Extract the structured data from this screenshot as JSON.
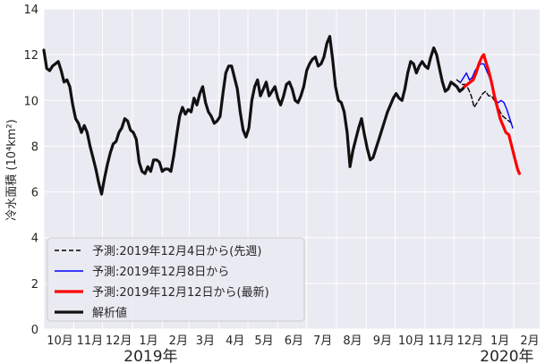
{
  "chart_data": {
    "type": "line",
    "ylabel": "冷水面積 (10⁴km²)",
    "ylim": [
      0,
      14
    ],
    "yticks": [
      0,
      2,
      4,
      6,
      8,
      10,
      12,
      14
    ],
    "xlim": [
      "2018-10-01",
      "2020-02-28"
    ],
    "xticks": [
      {
        "date": "2018-10-01",
        "label": "10月"
      },
      {
        "date": "2018-11-01",
        "label": "11月"
      },
      {
        "date": "2018-12-01",
        "label": "12月"
      },
      {
        "date": "2019-01-01",
        "label": "1月"
      },
      {
        "date": "2019-02-01",
        "label": "2月"
      },
      {
        "date": "2019-03-01",
        "label": "3月"
      },
      {
        "date": "2019-04-01",
        "label": "4月"
      },
      {
        "date": "2019-05-01",
        "label": "5月"
      },
      {
        "date": "2019-06-01",
        "label": "6月"
      },
      {
        "date": "2019-07-01",
        "label": "7月"
      },
      {
        "date": "2019-08-01",
        "label": "8月"
      },
      {
        "date": "2019-09-01",
        "label": "9月"
      },
      {
        "date": "2019-10-01",
        "label": "10月"
      },
      {
        "date": "2019-11-01",
        "label": "11月"
      },
      {
        "date": "2019-12-01",
        "label": "12月"
      },
      {
        "date": "2020-01-01",
        "label": "1月"
      },
      {
        "date": "2020-02-01",
        "label": "2月"
      }
    ],
    "year_labels": [
      {
        "date": "2019-01-20",
        "label": "2019年"
      },
      {
        "date": "2020-01-25",
        "label": "2020年"
      }
    ],
    "grid": true,
    "legend_position": "bottom-left",
    "series": [
      {
        "name": "予測:2019年12月4日から(先週)",
        "color": "#000000",
        "style": "dashed",
        "width": 1.4,
        "points": [
          [
            "2019-12-04",
            10.9
          ],
          [
            "2019-12-07",
            10.8
          ],
          [
            "2019-12-10",
            10.7
          ],
          [
            "2019-12-13",
            10.7
          ],
          [
            "2019-12-16",
            10.5
          ],
          [
            "2019-12-19",
            10.2
          ],
          [
            "2019-12-22",
            9.7
          ],
          [
            "2019-12-25",
            9.9
          ],
          [
            "2019-12-28",
            10.1
          ],
          [
            "2019-12-31",
            10.3
          ],
          [
            "2020-01-03",
            10.4
          ],
          [
            "2020-01-06",
            10.2
          ],
          [
            "2020-01-09",
            10.2
          ],
          [
            "2020-01-12",
            10.0
          ],
          [
            "2020-01-15",
            9.8
          ],
          [
            "2020-01-18",
            9.5
          ],
          [
            "2020-01-21",
            9.3
          ],
          [
            "2020-01-24",
            9.2
          ],
          [
            "2020-01-27",
            9.1
          ],
          [
            "2020-01-30",
            9.0
          ]
        ]
      },
      {
        "name": "予測:2019年12月8日から",
        "color": "#0000ff",
        "style": "solid",
        "width": 1.4,
        "points": [
          [
            "2019-12-08",
            10.8
          ],
          [
            "2019-12-11",
            11.0
          ],
          [
            "2019-12-14",
            11.2
          ],
          [
            "2019-12-17",
            10.9
          ],
          [
            "2019-12-20",
            11.0
          ],
          [
            "2019-12-23",
            11.3
          ],
          [
            "2019-12-26",
            11.5
          ],
          [
            "2019-12-29",
            11.6
          ],
          [
            "2020-01-01",
            11.6
          ],
          [
            "2020-01-04",
            11.3
          ],
          [
            "2020-01-07",
            11.0
          ],
          [
            "2020-01-10",
            10.5
          ],
          [
            "2020-01-13",
            10.0
          ],
          [
            "2020-01-16",
            9.9
          ],
          [
            "2020-01-19",
            10.0
          ],
          [
            "2020-01-22",
            9.9
          ],
          [
            "2020-01-25",
            9.6
          ],
          [
            "2020-01-28",
            9.2
          ],
          [
            "2020-01-31",
            8.8
          ]
        ]
      },
      {
        "name": "予測:2019年12月12日から(最新)",
        "color": "#ff0000",
        "style": "solid",
        "width": 3.2,
        "points": [
          [
            "2019-12-12",
            10.6
          ],
          [
            "2019-12-15",
            10.7
          ],
          [
            "2019-12-18",
            10.8
          ],
          [
            "2019-12-21",
            10.9
          ],
          [
            "2019-12-24",
            11.2
          ],
          [
            "2019-12-27",
            11.6
          ],
          [
            "2019-12-30",
            11.9
          ],
          [
            "2020-01-01",
            12.0
          ],
          [
            "2020-01-03",
            11.7
          ],
          [
            "2020-01-06",
            11.3
          ],
          [
            "2020-01-09",
            10.8
          ],
          [
            "2020-01-12",
            10.2
          ],
          [
            "2020-01-15",
            9.7
          ],
          [
            "2020-01-18",
            9.2
          ],
          [
            "2020-01-21",
            8.9
          ],
          [
            "2020-01-24",
            8.6
          ],
          [
            "2020-01-27",
            8.5
          ],
          [
            "2020-01-30",
            8.0
          ],
          [
            "2020-02-02",
            7.5
          ],
          [
            "2020-02-05",
            7.0
          ],
          [
            "2020-02-07",
            6.8
          ]
        ]
      },
      {
        "name": "解析値",
        "color": "#111111",
        "style": "solid",
        "width": 3.2,
        "points": [
          [
            "2018-10-01",
            12.2
          ],
          [
            "2018-10-04",
            11.4
          ],
          [
            "2018-10-07",
            11.3
          ],
          [
            "2018-10-10",
            11.5
          ],
          [
            "2018-10-13",
            11.6
          ],
          [
            "2018-10-16",
            11.7
          ],
          [
            "2018-10-19",
            11.3
          ],
          [
            "2018-10-22",
            10.8
          ],
          [
            "2018-10-25",
            10.9
          ],
          [
            "2018-10-28",
            10.6
          ],
          [
            "2018-10-31",
            9.8
          ],
          [
            "2018-11-03",
            9.2
          ],
          [
            "2018-11-06",
            9.0
          ],
          [
            "2018-11-09",
            8.6
          ],
          [
            "2018-11-12",
            8.9
          ],
          [
            "2018-11-15",
            8.6
          ],
          [
            "2018-11-18",
            8.0
          ],
          [
            "2018-11-21",
            7.5
          ],
          [
            "2018-11-24",
            7.0
          ],
          [
            "2018-11-27",
            6.4
          ],
          [
            "2018-11-30",
            5.9
          ],
          [
            "2018-12-03",
            6.6
          ],
          [
            "2018-12-06",
            7.2
          ],
          [
            "2018-12-09",
            7.7
          ],
          [
            "2018-12-12",
            8.1
          ],
          [
            "2018-12-15",
            8.2
          ],
          [
            "2018-12-18",
            8.6
          ],
          [
            "2018-12-21",
            8.8
          ],
          [
            "2018-12-24",
            9.2
          ],
          [
            "2018-12-27",
            9.1
          ],
          [
            "2018-12-30",
            8.7
          ],
          [
            "2019-01-02",
            8.6
          ],
          [
            "2019-01-05",
            8.3
          ],
          [
            "2019-01-08",
            7.3
          ],
          [
            "2019-01-11",
            6.9
          ],
          [
            "2019-01-14",
            6.8
          ],
          [
            "2019-01-17",
            7.1
          ],
          [
            "2019-01-20",
            6.9
          ],
          [
            "2019-01-23",
            7.4
          ],
          [
            "2019-01-26",
            7.4
          ],
          [
            "2019-01-29",
            7.3
          ],
          [
            "2019-02-01",
            6.9
          ],
          [
            "2019-02-04",
            7.0
          ],
          [
            "2019-02-07",
            7.0
          ],
          [
            "2019-02-10",
            6.9
          ],
          [
            "2019-02-13",
            7.6
          ],
          [
            "2019-02-16",
            8.5
          ],
          [
            "2019-02-19",
            9.3
          ],
          [
            "2019-02-22",
            9.7
          ],
          [
            "2019-02-25",
            9.4
          ],
          [
            "2019-02-28",
            9.6
          ],
          [
            "2019-03-03",
            9.5
          ],
          [
            "2019-03-06",
            10.1
          ],
          [
            "2019-03-09",
            9.8
          ],
          [
            "2019-03-12",
            10.3
          ],
          [
            "2019-03-15",
            10.6
          ],
          [
            "2019-03-18",
            9.9
          ],
          [
            "2019-03-21",
            9.5
          ],
          [
            "2019-03-24",
            9.3
          ],
          [
            "2019-03-27",
            9.0
          ],
          [
            "2019-03-30",
            9.1
          ],
          [
            "2019-04-02",
            9.3
          ],
          [
            "2019-04-05",
            10.3
          ],
          [
            "2019-04-08",
            11.2
          ],
          [
            "2019-04-11",
            11.5
          ],
          [
            "2019-04-14",
            11.5
          ],
          [
            "2019-04-17",
            11.0
          ],
          [
            "2019-04-20",
            10.5
          ],
          [
            "2019-04-23",
            9.5
          ],
          [
            "2019-04-26",
            8.7
          ],
          [
            "2019-04-29",
            8.4
          ],
          [
            "2019-05-02",
            8.8
          ],
          [
            "2019-05-05",
            10.0
          ],
          [
            "2019-05-08",
            10.6
          ],
          [
            "2019-05-11",
            10.9
          ],
          [
            "2019-05-14",
            10.2
          ],
          [
            "2019-05-17",
            10.5
          ],
          [
            "2019-05-20",
            10.8
          ],
          [
            "2019-05-23",
            10.2
          ],
          [
            "2019-05-26",
            10.4
          ],
          [
            "2019-05-29",
            10.6
          ],
          [
            "2019-06-01",
            10.1
          ],
          [
            "2019-06-04",
            9.8
          ],
          [
            "2019-06-07",
            10.2
          ],
          [
            "2019-06-10",
            10.7
          ],
          [
            "2019-06-13",
            10.8
          ],
          [
            "2019-06-16",
            10.5
          ],
          [
            "2019-06-19",
            10.0
          ],
          [
            "2019-06-22",
            9.9
          ],
          [
            "2019-06-25",
            10.2
          ],
          [
            "2019-06-28",
            10.6
          ],
          [
            "2019-07-01",
            11.3
          ],
          [
            "2019-07-04",
            11.6
          ],
          [
            "2019-07-07",
            11.8
          ],
          [
            "2019-07-10",
            11.9
          ],
          [
            "2019-07-13",
            11.5
          ],
          [
            "2019-07-16",
            11.6
          ],
          [
            "2019-07-19",
            11.9
          ],
          [
            "2019-07-22",
            12.5
          ],
          [
            "2019-07-25",
            12.8
          ],
          [
            "2019-07-28",
            11.8
          ],
          [
            "2019-07-31",
            10.6
          ],
          [
            "2019-08-03",
            10.0
          ],
          [
            "2019-08-06",
            9.9
          ],
          [
            "2019-08-09",
            9.5
          ],
          [
            "2019-08-12",
            8.6
          ],
          [
            "2019-08-15",
            7.1
          ],
          [
            "2019-08-18",
            7.8
          ],
          [
            "2019-08-21",
            8.3
          ],
          [
            "2019-08-24",
            8.8
          ],
          [
            "2019-08-27",
            9.2
          ],
          [
            "2019-08-30",
            8.5
          ],
          [
            "2019-09-02",
            7.9
          ],
          [
            "2019-09-05",
            7.4
          ],
          [
            "2019-09-08",
            7.5
          ],
          [
            "2019-09-11",
            7.9
          ],
          [
            "2019-09-14",
            8.3
          ],
          [
            "2019-09-17",
            8.7
          ],
          [
            "2019-09-20",
            9.1
          ],
          [
            "2019-09-23",
            9.5
          ],
          [
            "2019-09-26",
            9.8
          ],
          [
            "2019-09-29",
            10.1
          ],
          [
            "2019-10-02",
            10.3
          ],
          [
            "2019-10-05",
            10.1
          ],
          [
            "2019-10-08",
            10.0
          ],
          [
            "2019-10-11",
            10.5
          ],
          [
            "2019-10-14",
            11.2
          ],
          [
            "2019-10-17",
            11.7
          ],
          [
            "2019-10-20",
            11.6
          ],
          [
            "2019-10-23",
            11.2
          ],
          [
            "2019-10-26",
            11.5
          ],
          [
            "2019-10-29",
            11.7
          ],
          [
            "2019-11-01",
            11.5
          ],
          [
            "2019-11-04",
            11.4
          ],
          [
            "2019-11-07",
            11.9
          ],
          [
            "2019-11-10",
            12.3
          ],
          [
            "2019-11-13",
            12.0
          ],
          [
            "2019-11-16",
            11.4
          ],
          [
            "2019-11-19",
            10.8
          ],
          [
            "2019-11-22",
            10.4
          ],
          [
            "2019-11-25",
            10.5
          ],
          [
            "2019-11-28",
            10.8
          ],
          [
            "2019-12-01",
            10.7
          ],
          [
            "2019-12-04",
            10.6
          ],
          [
            "2019-12-07",
            10.4
          ],
          [
            "2019-12-10",
            10.5
          ],
          [
            "2019-12-12",
            10.6
          ]
        ]
      }
    ]
  }
}
